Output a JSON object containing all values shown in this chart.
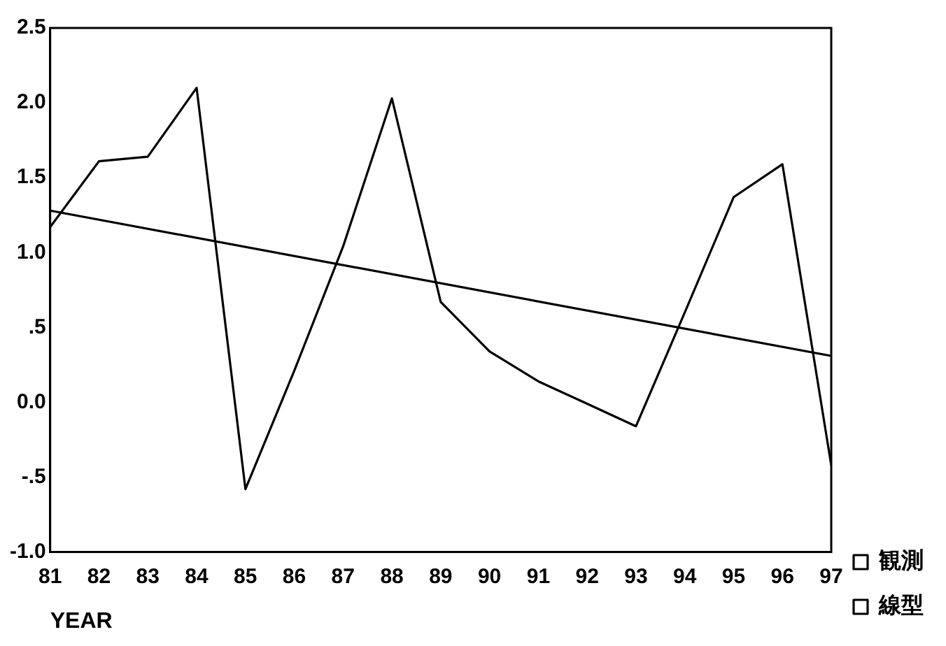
{
  "chart_data": {
    "type": "line",
    "xlabel": "YEAR",
    "xlim": [
      81,
      97
    ],
    "xticks": [
      81,
      82,
      83,
      84,
      85,
      86,
      87,
      88,
      89,
      90,
      91,
      92,
      93,
      94,
      95,
      96,
      97
    ],
    "ylim": [
      -1.0,
      2.5
    ],
    "yticks": [
      {
        "value": 2.5,
        "label": "2.5"
      },
      {
        "value": 2.0,
        "label": "2.0"
      },
      {
        "value": 1.5,
        "label": "1.5"
      },
      {
        "value": 1.0,
        "label": "1.0"
      },
      {
        "value": 0.5,
        "label": ".5"
      },
      {
        "value": 0.0,
        "label": "0.0"
      },
      {
        "value": -0.5,
        "label": "-.5"
      },
      {
        "value": -1.0,
        "label": "-1.0"
      }
    ],
    "grid": false,
    "legend": "right",
    "marker": "none",
    "line_style": "solid",
    "series": [
      {
        "name": "観測",
        "color": "#000000",
        "x": [
          81,
          82,
          83,
          84,
          85,
          86,
          87,
          88,
          89,
          90,
          91,
          92,
          93,
          94,
          95,
          96,
          97
        ],
        "values": [
          1.17,
          1.61,
          1.64,
          2.1,
          -0.58,
          0.21,
          1.04,
          2.03,
          0.67,
          0.34,
          0.14,
          -0.01,
          -0.16,
          0.6,
          1.37,
          1.59,
          -0.42
        ]
      },
      {
        "name": "線型",
        "color": "#000000",
        "x": [
          81,
          97
        ],
        "values": [
          1.28,
          0.31
        ]
      }
    ]
  }
}
